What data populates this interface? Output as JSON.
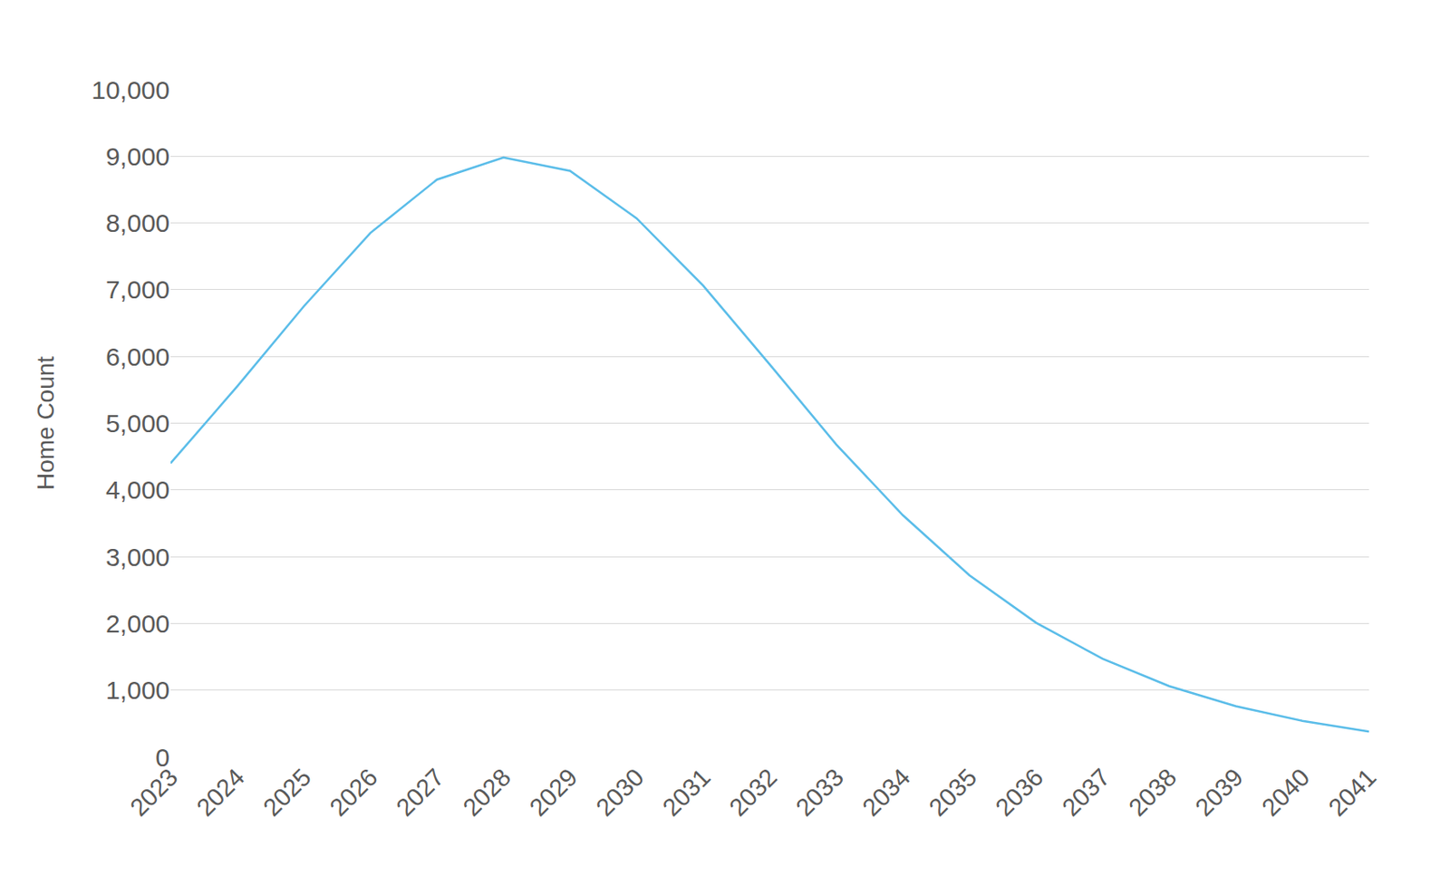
{
  "chart_data": {
    "type": "line",
    "y_label": "Home Count",
    "categories": [
      "2023",
      "2024",
      "2025",
      "2026",
      "2027",
      "2028",
      "2029",
      "2030",
      "2031",
      "2032",
      "2033",
      "2034",
      "2035",
      "2036",
      "2037",
      "2038",
      "2039",
      "2040",
      "2041"
    ],
    "values": [
      4400,
      5550,
      6750,
      7850,
      8650,
      8980,
      8780,
      8070,
      7060,
      5880,
      4680,
      3620,
      2720,
      2010,
      1470,
      1060,
      760,
      540,
      380
    ],
    "color": "#5bbde9",
    "ylim": [
      0,
      10000
    ],
    "yticks": [
      0,
      {
        "value": 1000,
        "label": "1,000"
      },
      {
        "value": 2000,
        "label": "2,000"
      },
      {
        "value": 3000,
        "label": "3,000"
      },
      {
        "value": 4000,
        "label": "4,000"
      },
      {
        "value": 5000,
        "label": "5,000"
      },
      {
        "value": 6000,
        "label": "6,000"
      },
      {
        "value": 7000,
        "label": "7,000"
      },
      {
        "value": 8000,
        "label": "8,000"
      },
      {
        "value": 9000,
        "label": "9,000"
      },
      {
        "value": 10000,
        "label": "10,000"
      }
    ],
    "grid": true
  }
}
